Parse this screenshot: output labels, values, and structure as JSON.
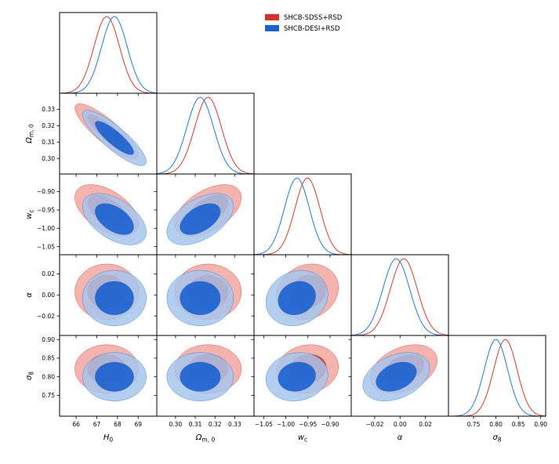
{
  "chart_data": {
    "type": "triangle",
    "title": "",
    "parameters": [
      {
        "key": "H0",
        "label": "H",
        "sub": "0",
        "range": [
          65.2,
          69.9
        ],
        "ticks": [
          66,
          67,
          68,
          69
        ],
        "tick_labels": [
          "66",
          "67",
          "68",
          "69"
        ]
      },
      {
        "key": "Om",
        "label": "Ω",
        "sub": "m, 0",
        "range": [
          0.2905,
          0.3398
        ],
        "ticks": [
          0.3,
          0.31,
          0.32,
          0.33
        ],
        "tick_labels": [
          "0.30",
          "0.31",
          "0.32",
          "0.33"
        ]
      },
      {
        "key": "wc",
        "label": "w",
        "sub": "c",
        "range": [
          -1.072,
          -0.852
        ],
        "ticks": [
          -1.05,
          -1.0,
          -0.95,
          -0.9
        ],
        "tick_labels": [
          "−1.05",
          "−1.00",
          "−0.95",
          "−0.90"
        ]
      },
      {
        "key": "alpha",
        "label": "α",
        "sub": "",
        "range": [
          -0.0385,
          0.0382
        ],
        "ticks": [
          -0.02,
          0.0,
          0.02
        ],
        "tick_labels": [
          "−0.02",
          "0.00",
          "0.02"
        ]
      },
      {
        "key": "s8",
        "label": "σ",
        "sub": "8",
        "range": [
          0.694,
          0.911
        ],
        "ticks": [
          0.75,
          0.8,
          0.85,
          0.9
        ],
        "tick_labels": [
          "0.75",
          "0.80",
          "0.85",
          "0.90"
        ]
      }
    ],
    "series": [
      {
        "name": "SHCB-SDSS+RSD",
        "color_line": "#d8392c",
        "color_inner": "#d93224",
        "color_outer": "#f2a69e",
        "mean": [
          67.48,
          0.3165,
          -0.951,
          0.003,
          0.821
        ],
        "sigma": [
          0.62,
          0.0068,
          0.0282,
          0.0106,
          0.0262
        ],
        "corr": [
          [
            1,
            -0.85,
            -0.5,
            0,
            0
          ],
          [
            -0.85,
            1,
            0.5,
            0,
            0
          ],
          [
            -0.5,
            0.5,
            1,
            0.15,
            0.1
          ],
          [
            0,
            0,
            0.15,
            1,
            0.35
          ],
          [
            0,
            0,
            0.1,
            0.35,
            1
          ]
        ]
      },
      {
        "name": "SHCB-DESI+RSD",
        "color_line": "#1e7ae0",
        "color_inner": "#1a62cf",
        "color_outer": "#a7c5ec",
        "mean": [
          67.85,
          0.3125,
          -0.975,
          -0.003,
          0.8
        ],
        "sigma": [
          0.62,
          0.0068,
          0.0282,
          0.0106,
          0.0262
        ],
        "corr": [
          [
            1,
            -0.85,
            -0.5,
            0,
            0
          ],
          [
            -0.85,
            1,
            0.5,
            0,
            0
          ],
          [
            -0.5,
            0.5,
            1,
            0.15,
            0.1
          ],
          [
            0,
            0,
            0.15,
            1,
            0.35
          ],
          [
            0,
            0,
            0.1,
            0.35,
            1
          ]
        ]
      }
    ],
    "contour_levels": [
      "68%",
      "95%"
    ],
    "legend_position": "top-right"
  }
}
